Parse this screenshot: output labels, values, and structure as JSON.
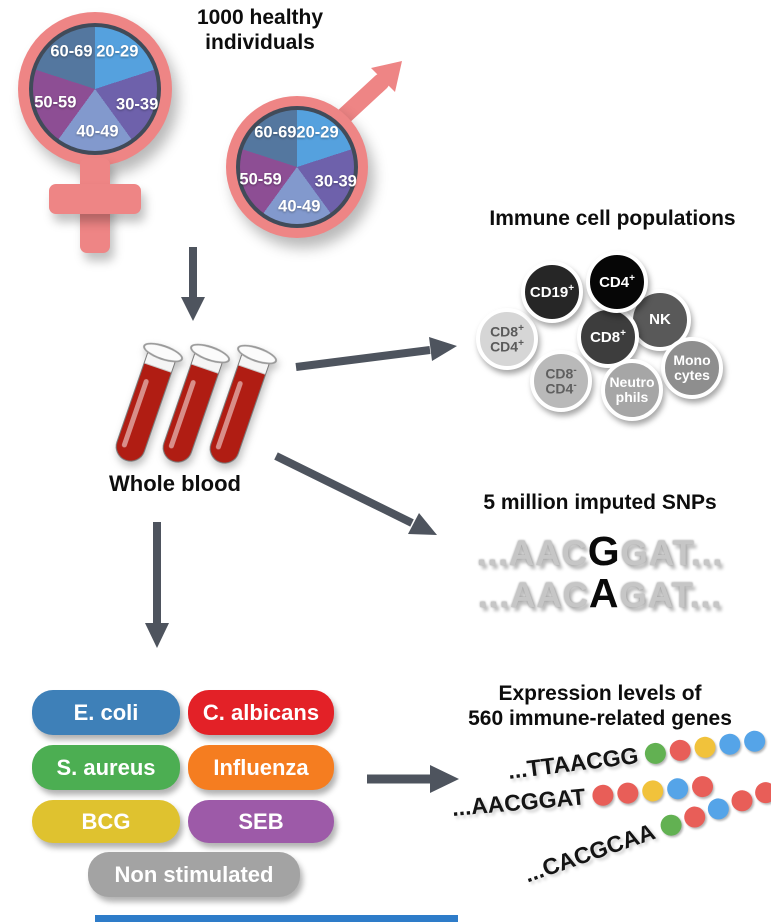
{
  "header": {
    "line1": "1000 healthy",
    "line2": "individuals"
  },
  "age_pie": {
    "segments": [
      {
        "label": "20-29",
        "color": "#55a1de"
      },
      {
        "label": "30-39",
        "color": "#6e61ab"
      },
      {
        "label": "40-49",
        "color": "#8299cd"
      },
      {
        "label": "50-59",
        "color": "#8d4e94"
      },
      {
        "label": "60-69",
        "color": "#54779f"
      }
    ],
    "symbol_color": "#ee8585",
    "pie_border_color": "#414b59"
  },
  "whole_blood": {
    "label": "Whole blood",
    "tube_color": "#b01d13"
  },
  "immune": {
    "heading": "Immune cell populations",
    "cells": [
      {
        "name": "CD8+ CD4+",
        "line1": "CD8",
        "sup1": "+",
        "line2": "CD4",
        "sup2": "+",
        "bg": "#d6d6d6",
        "fg": "#5a5a5a"
      },
      {
        "name": "CD19+",
        "line1": "CD19",
        "sup1": "+",
        "bg": "#262626",
        "fg": "#ffffff"
      },
      {
        "name": "CD4+",
        "line1": "CD4",
        "sup1": "+",
        "bg": "#060606",
        "fg": "#ffffff"
      },
      {
        "name": "NK",
        "line1": "NK",
        "bg": "#595959",
        "fg": "#ffffff"
      },
      {
        "name": "CD8+",
        "line1": "CD8",
        "sup1": "+",
        "bg": "#3d3d3d",
        "fg": "#ffffff"
      },
      {
        "name": "Monocytes",
        "line1": "Mono",
        "line2": "cytes",
        "bg": "#8e8e8e",
        "fg": "#ffffff"
      },
      {
        "name": "CD8- CD4-",
        "line1": "CD8",
        "sup1": "-",
        "line2": "CD4",
        "sup2": "-",
        "bg": "#b9b9b9",
        "fg": "#5f5f5f"
      },
      {
        "name": "Neutrophils",
        "line1": "Neutro",
        "line2": "phils",
        "bg": "#a6a6a6",
        "fg": "#ffffff"
      }
    ]
  },
  "snps": {
    "heading": "5 million imputed SNPs",
    "rows": [
      {
        "pre": "...AAC",
        "snp": "G",
        "post": "GAT..."
      },
      {
        "pre": "...AAC",
        "snp": "A",
        "post": "GAT..."
      }
    ]
  },
  "stimulations": {
    "items": [
      {
        "label": "E. coli",
        "color": "#3e80b8"
      },
      {
        "label": "C. albicans",
        "color": "#e32127"
      },
      {
        "label": "S. aureus",
        "color": "#4cae52"
      },
      {
        "label": "Influenza",
        "color": "#f57d20"
      },
      {
        "label": "BCG",
        "color": "#dfc22f"
      },
      {
        "label": "SEB",
        "color": "#9d5aa8"
      },
      {
        "label": "Non stimulated",
        "color": "#a3a3a3"
      }
    ]
  },
  "expression": {
    "heading_line1": "Expression levels of",
    "heading_line2": "560 immune-related genes",
    "dot_colors": {
      "green": "#62b152",
      "red": "#e85e58",
      "yellow": "#f1c23b",
      "blue": "#55a4e8"
    },
    "rows": [
      {
        "seq": "...TTAACGG",
        "dots": [
          "green",
          "red",
          "yellow",
          "blue",
          "blue"
        ]
      },
      {
        "seq": "...AACGGAT",
        "dots": [
          "red",
          "red",
          "yellow",
          "blue",
          "red"
        ]
      },
      {
        "seq": "...CACGCAA",
        "dots": [
          "green",
          "red",
          "blue",
          "red",
          "red"
        ]
      }
    ]
  },
  "arrow_color": "#4e545e"
}
